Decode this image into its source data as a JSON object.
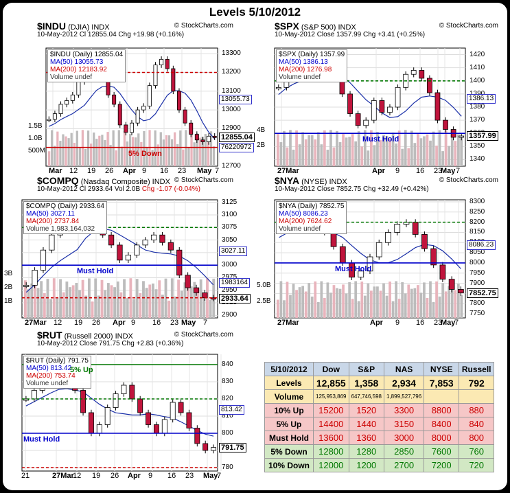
{
  "page_title": "Levels 5/10/2012",
  "watermark": "© StockCharts.com",
  "charts": [
    {
      "id": "indu",
      "symbol": "$INDU",
      "name": "(DJIA)",
      "type_label": "INDX",
      "date": "10-May-2012",
      "stats_1": "Cl 12855.04",
      "stats_2": "Chg +19.98 (+0.16%)",
      "legend": [
        "$INDU (Daily) 12855.04",
        "MA(50) 13055.73",
        "MA(200) 12183.92",
        "Volume undef"
      ],
      "y_ticks": [
        "13300",
        "13200",
        "13100",
        "13000",
        "12900",
        "12800",
        "12700"
      ],
      "vol_ticks": [
        "1.5B",
        "1.0B",
        "500M"
      ],
      "x_ticks": [
        "Mar",
        "12",
        "19",
        "26",
        "Apr",
        "9",
        "16",
        "23",
        "May",
        "7"
      ],
      "tags": [
        "13055.73",
        "12855.04",
        "76220972"
      ],
      "annotation": "5% Down"
    },
    {
      "id": "spx",
      "symbol": "$SPX",
      "name": "(S&P 500)",
      "type_label": "INDX",
      "date": "10-May-2012",
      "stats_1": "Close 1357.99",
      "stats_2": "Chg +3.41 (+0.25%)",
      "legend": [
        "$SPX (Daily) 1357.99",
        "MA(50) 1386.13",
        "MA(200) 1276.98",
        "Volume undef"
      ],
      "y_ticks": [
        "1420",
        "1410",
        "1400",
        "1390",
        "1380",
        "1370",
        "1360",
        "1350",
        "1340"
      ],
      "vol_ticks": [
        "4B",
        "2B"
      ],
      "x_ticks": [
        "27Mar",
        "Apr",
        "9",
        "16",
        "23",
        "May",
        "7"
      ],
      "tags": [
        "1386.13",
        "1357.99"
      ],
      "annotation": "Must Hold"
    },
    {
      "id": "compq",
      "symbol": "$COMPQ",
      "name": "(Nasdaq Composite)",
      "type_label": "INDX",
      "date": "10-May-2012",
      "stats_1": "Cl 2933.64",
      "stats_2": "Vol 2.0B",
      "stats_3": "Chg -1.07 (-0.04%)",
      "legend": [
        "$COMPQ (Daily) 2933.64",
        "MA(50) 3027.11",
        "MA(200) 2737.84",
        "Volume 1,983,164,032"
      ],
      "y_ticks": [
        "3125",
        "3100",
        "3075",
        "3050",
        "3025",
        "3000",
        "2975",
        "2950",
        "2925",
        "2900"
      ],
      "vol_ticks": [
        "3B",
        "2B",
        "1B"
      ],
      "x_ticks": [
        "27Mar",
        "12",
        "19",
        "26",
        "Apr",
        "9",
        "16",
        "23",
        "May",
        "7"
      ],
      "tags": [
        "3027.11",
        "1983164",
        "2933.64"
      ],
      "annotation": "Must Hold"
    },
    {
      "id": "nya",
      "symbol": "$NYA",
      "name": "(NYSE)",
      "type_label": "INDX",
      "date": "10-May-2012",
      "stats_1": "Close 7852.75",
      "stats_2": "Chg +32.49 (+0.42%)",
      "legend": [
        "$NYA (Daily) 7852.75",
        "MA(50) 8086.23",
        "MA(200) 7624.62",
        "Volume undef"
      ],
      "y_ticks": [
        "8300",
        "8250",
        "8200",
        "8150",
        "8100",
        "8050",
        "8000",
        "7950",
        "7900",
        "7850",
        "7800",
        "7750"
      ],
      "vol_ticks": [
        "5.0B",
        "2.5B"
      ],
      "x_ticks": [
        "27Mar",
        "Apr",
        "9",
        "16",
        "23",
        "May",
        "7"
      ],
      "tags": [
        "8086.23",
        "7852.75"
      ],
      "annotation": "Must Hold"
    },
    {
      "id": "rut",
      "symbol": "$RUT",
      "name": "(Russell 2000)",
      "type_label": "INDX",
      "date": "10-May-2012",
      "stats_1": "Close 791.75",
      "stats_2": "Chg +2.83 (+0.36%)",
      "legend": [
        "$RUT (Daily) 791.75",
        "MA(50) 813.42",
        "MA(200) 753.74",
        "Volume undef"
      ],
      "y_ticks": [
        "840",
        "830",
        "820",
        "810",
        "800",
        "790",
        "780"
      ],
      "x_ticks": [
        "21",
        "27Mar",
        "12",
        "19",
        "26",
        "Apr",
        "9",
        "16",
        "23",
        "May",
        "7"
      ],
      "tags": [
        "813.42",
        "791.75"
      ],
      "annotation": "Must Hold",
      "annotation_2": "5% Up"
    }
  ],
  "levels_table": {
    "date": "5/10/2012",
    "columns": [
      "Dow",
      "S&P",
      "NAS",
      "NYSE",
      "Russell"
    ],
    "rows": [
      {
        "label": "Levels",
        "values": [
          "12,855",
          "1,358",
          "2,934",
          "7,853",
          "792"
        ],
        "kind": "lv"
      },
      {
        "label": "Volume",
        "values": [
          "125,953,869",
          "647,746,598",
          "1,899,527,796",
          "",
          ""
        ],
        "kind": "vol"
      },
      {
        "label": "10% Up",
        "values": [
          "15200",
          "1520",
          "3300",
          "8800",
          "880"
        ],
        "kind": "up"
      },
      {
        "label": "5% Up",
        "values": [
          "14400",
          "1440",
          "3150",
          "8400",
          "840"
        ],
        "kind": "up"
      },
      {
        "label": "Must Hold",
        "values": [
          "13600",
          "1360",
          "3000",
          "8000",
          "800"
        ],
        "kind": "up"
      },
      {
        "label": "5% Down",
        "values": [
          "12800",
          "1280",
          "2850",
          "7600",
          "760"
        ],
        "kind": "dn"
      },
      {
        "label": "10% Down",
        "values": [
          "12000",
          "1200",
          "2700",
          "7200",
          "720"
        ],
        "kind": "dn"
      }
    ]
  },
  "colors": {
    "up_candle": "#ffffff",
    "down_candle": "#c0143c",
    "ma50": "#1a2fa8",
    "must_hold": "#0000cc",
    "up_level": "#007700",
    "down_level": "#cc0000"
  },
  "chart_data": [
    {
      "type": "line",
      "title": "$INDU",
      "series": [
        {
          "name": "$INDU (Daily)",
          "values": [
            12950,
            12980,
            13030,
            13050,
            13080,
            13150,
            13200,
            13230,
            13250,
            13170,
            13080,
            13030,
            12920,
            12880,
            12930,
            13000,
            13020,
            13130,
            13240,
            13270,
            13220,
            13100,
            13000,
            12930,
            12870,
            12840,
            12830,
            12860,
            12855
          ]
        }
      ],
      "ylim": [
        12700,
        13330
      ],
      "hlines": [
        {
          "value": 13200,
          "color": "red"
        },
        {
          "value": 12800,
          "color": "red",
          "label": "5% Down"
        }
      ]
    },
    {
      "type": "line",
      "title": "$SPX",
      "series": [
        {
          "name": "$SPX (Daily)",
          "values": [
            1395,
            1405,
            1410,
            1412,
            1415,
            1418,
            1413,
            1405,
            1390,
            1375,
            1366,
            1370,
            1385,
            1376,
            1380,
            1395,
            1405,
            1408,
            1402,
            1391,
            1370,
            1363,
            1357,
            1358
          ]
        }
      ],
      "ylim": [
        1335,
        1425
      ],
      "hlines": [
        {
          "value": 1400,
          "color": "green"
        },
        {
          "value": 1360,
          "color": "blue",
          "label": "Must Hold"
        }
      ]
    },
    {
      "type": "line",
      "title": "$COMPQ",
      "series": [
        {
          "name": "$COMPQ (Daily)",
          "values": [
            2960,
            2990,
            3030,
            3060,
            3075,
            3090,
            3110,
            3120,
            3090,
            3060,
            3040,
            3010,
            3020,
            3040,
            3050,
            3060,
            3045,
            3030,
            2980,
            2955,
            2945,
            2935,
            2934
          ]
        }
      ],
      "ylim": [
        2895,
        3130
      ],
      "hlines": [
        {
          "value": 3075,
          "color": "green"
        },
        {
          "value": 3000,
          "color": "blue",
          "label": "Must Hold"
        },
        {
          "value": 2935,
          "color": "red"
        }
      ]
    },
    {
      "type": "line",
      "title": "$NYA",
      "series": [
        {
          "name": "$NYA (Daily)",
          "values": [
            8160,
            8210,
            8230,
            8250,
            8200,
            8150,
            8080,
            8000,
            7930,
            7960,
            8030,
            8100,
            8150,
            8190,
            8200,
            8140,
            8070,
            7990,
            7920,
            7870,
            7853
          ]
        }
      ],
      "ylim": [
        7730,
        8310
      ],
      "hlines": [
        {
          "value": 8200,
          "color": "green"
        },
        {
          "value": 8000,
          "color": "blue",
          "label": "Must Hold"
        }
      ]
    },
    {
      "type": "line",
      "title": "$RUT",
      "series": [
        {
          "name": "$RUT (Daily)",
          "values": [
            820,
            825,
            830,
            835,
            838,
            832,
            825,
            812,
            800,
            805,
            815,
            823,
            828,
            820,
            812,
            805,
            800,
            808,
            818,
            812,
            803,
            794,
            790,
            791.75
          ]
        }
      ],
      "ylim": [
        778,
        846
      ],
      "hlines": [
        {
          "value": 840,
          "color": "green",
          "label": "5% Up"
        },
        {
          "value": 820,
          "color": "green"
        },
        {
          "value": 800,
          "color": "blue",
          "label": "Must Hold"
        },
        {
          "value": 780,
          "color": "red"
        }
      ]
    }
  ]
}
